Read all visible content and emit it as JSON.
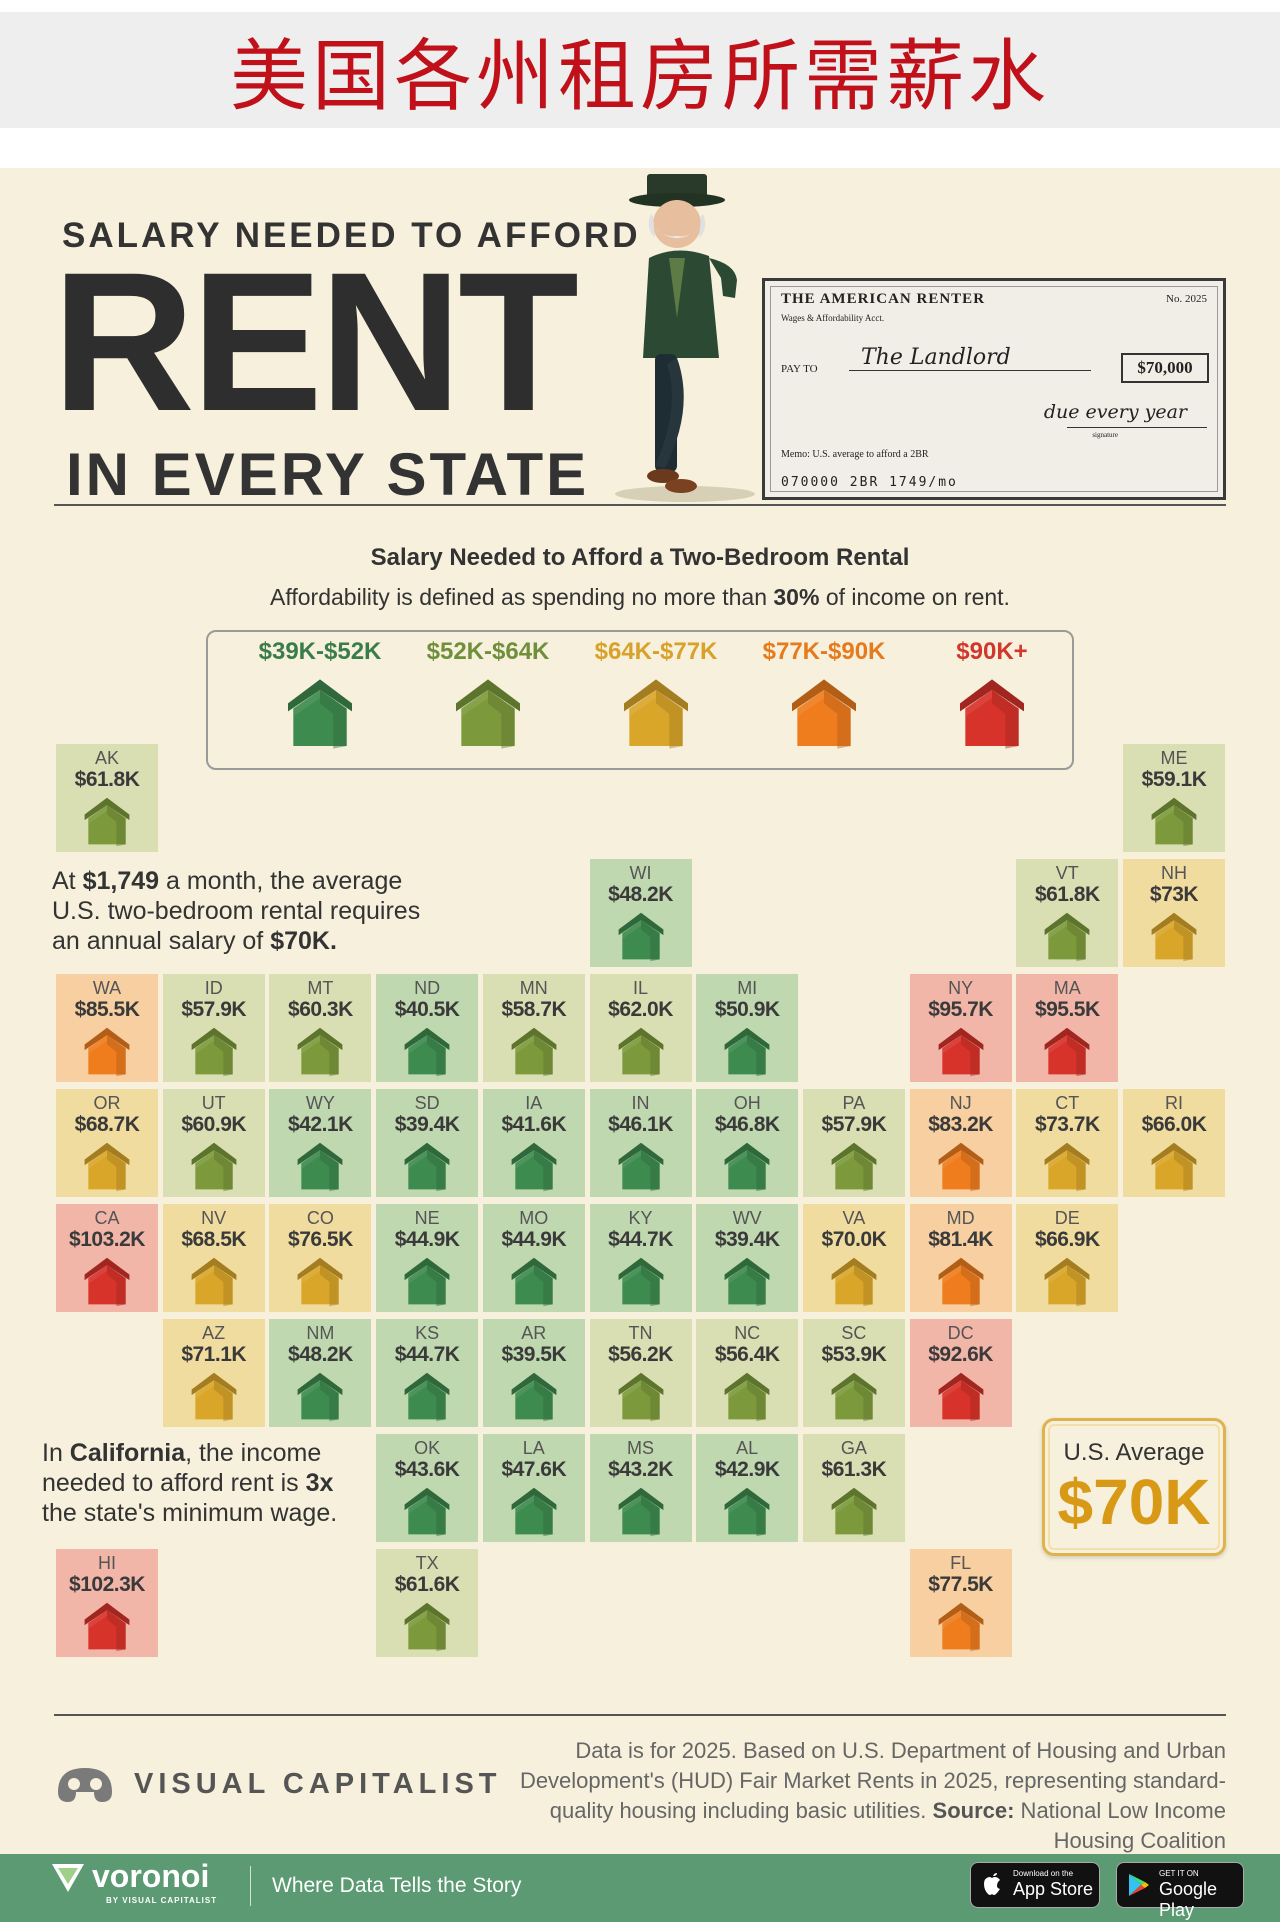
{
  "banner": {
    "title": "美国各州租房所需薪水"
  },
  "header": {
    "top": "SALARY NEEDED TO AFFORD",
    "main": "RENT",
    "bottom": "IN EVERY STATE"
  },
  "check": {
    "title": "THE AMERICAN RENTER",
    "subtitle": "Wages & Affordability Acct.",
    "number": "No. 2025",
    "pay_to_label": "PAY TO",
    "payee": "The Landlord",
    "amount": "$70,000",
    "due": "due every year",
    "signature_label": "signature",
    "memo": "Memo: U.S. average to afford a 2BR",
    "micr": "070000  2BR  1749/mo"
  },
  "chart_data": {
    "type": "tile-map",
    "title": "Salary Needed to Afford a Two-Bedroom Rental",
    "subtitle_pre": "Affordability is defined as spending no more than ",
    "subtitle_bold": "30%",
    "subtitle_post": " of income on rent.",
    "legend": [
      {
        "label": "$39K-$52K",
        "color": "#3e8b4f",
        "text_color": "#3a7d48"
      },
      {
        "label": "$52K-$64K",
        "color": "#7c9a3c",
        "text_color": "#6f8f3a"
      },
      {
        "label": "$64K-$77K",
        "color": "#d9a62a",
        "text_color": "#d8a22a"
      },
      {
        "label": "$77K-$90K",
        "color": "#ef7d1e",
        "text_color": "#e67a1c"
      },
      {
        "label": "$90K+",
        "color": "#d8332b",
        "text_color": "#d0372d"
      }
    ],
    "states": [
      {
        "abbr": "AK",
        "label": "$61.8K",
        "value": 61.8
      },
      {
        "abbr": "ME",
        "label": "$59.1K",
        "value": 59.1
      },
      {
        "abbr": "WI",
        "label": "$48.2K",
        "value": 48.2
      },
      {
        "abbr": "VT",
        "label": "$61.8K",
        "value": 61.8
      },
      {
        "abbr": "NH",
        "label": "$73K",
        "value": 73.0
      },
      {
        "abbr": "WA",
        "label": "$85.5K",
        "value": 85.5
      },
      {
        "abbr": "ID",
        "label": "$57.9K",
        "value": 57.9
      },
      {
        "abbr": "MT",
        "label": "$60.3K",
        "value": 60.3
      },
      {
        "abbr": "ND",
        "label": "$40.5K",
        "value": 40.5
      },
      {
        "abbr": "MN",
        "label": "$58.7K",
        "value": 58.7
      },
      {
        "abbr": "IL",
        "label": "$62.0K",
        "value": 62.0
      },
      {
        "abbr": "MI",
        "label": "$50.9K",
        "value": 50.9
      },
      {
        "abbr": "NY",
        "label": "$95.7K",
        "value": 95.7
      },
      {
        "abbr": "MA",
        "label": "$95.5K",
        "value": 95.5
      },
      {
        "abbr": "OR",
        "label": "$68.7K",
        "value": 68.7
      },
      {
        "abbr": "UT",
        "label": "$60.9K",
        "value": 60.9
      },
      {
        "abbr": "WY",
        "label": "$42.1K",
        "value": 42.1
      },
      {
        "abbr": "SD",
        "label": "$39.4K",
        "value": 39.4
      },
      {
        "abbr": "IA",
        "label": "$41.6K",
        "value": 41.6
      },
      {
        "abbr": "IN",
        "label": "$46.1K",
        "value": 46.1
      },
      {
        "abbr": "OH",
        "label": "$46.8K",
        "value": 46.8
      },
      {
        "abbr": "PA",
        "label": "$57.9K",
        "value": 57.9
      },
      {
        "abbr": "NJ",
        "label": "$83.2K",
        "value": 83.2
      },
      {
        "abbr": "CT",
        "label": "$73.7K",
        "value": 73.7
      },
      {
        "abbr": "RI",
        "label": "$66.0K",
        "value": 66.0
      },
      {
        "abbr": "CA",
        "label": "$103.2K",
        "value": 103.2
      },
      {
        "abbr": "NV",
        "label": "$68.5K",
        "value": 68.5
      },
      {
        "abbr": "CO",
        "label": "$76.5K",
        "value": 76.5
      },
      {
        "abbr": "NE",
        "label": "$44.9K",
        "value": 44.9
      },
      {
        "abbr": "MO",
        "label": "$44.9K",
        "value": 44.9
      },
      {
        "abbr": "KY",
        "label": "$44.7K",
        "value": 44.7
      },
      {
        "abbr": "WV",
        "label": "$39.4K",
        "value": 39.4
      },
      {
        "abbr": "VA",
        "label": "$70.0K",
        "value": 70.0
      },
      {
        "abbr": "MD",
        "label": "$81.4K",
        "value": 81.4
      },
      {
        "abbr": "DE",
        "label": "$66.9K",
        "value": 66.9
      },
      {
        "abbr": "AZ",
        "label": "$71.1K",
        "value": 71.1
      },
      {
        "abbr": "NM",
        "label": "$48.2K",
        "value": 48.2
      },
      {
        "abbr": "KS",
        "label": "$44.7K",
        "value": 44.7
      },
      {
        "abbr": "AR",
        "label": "$39.5K",
        "value": 39.5
      },
      {
        "abbr": "TN",
        "label": "$56.2K",
        "value": 56.2
      },
      {
        "abbr": "NC",
        "label": "$56.4K",
        "value": 56.4
      },
      {
        "abbr": "SC",
        "label": "$53.9K",
        "value": 53.9
      },
      {
        "abbr": "DC",
        "label": "$92.6K",
        "value": 92.6
      },
      {
        "abbr": "OK",
        "label": "$43.6K",
        "value": 43.6
      },
      {
        "abbr": "LA",
        "label": "$47.6K",
        "value": 47.6
      },
      {
        "abbr": "MS",
        "label": "$43.2K",
        "value": 43.2
      },
      {
        "abbr": "AL",
        "label": "$42.9K",
        "value": 42.9
      },
      {
        "abbr": "GA",
        "label": "$61.3K",
        "value": 61.3
      },
      {
        "abbr": "HI",
        "label": "$102.3K",
        "value": 102.3
      },
      {
        "abbr": "TX",
        "label": "$61.6K",
        "value": 61.6
      },
      {
        "abbr": "FL",
        "label": "$77.5K",
        "value": 77.5
      }
    ]
  },
  "notes": {
    "avg": {
      "pre": "At ",
      "b1": "$1,749",
      "mid": " a month, the average U.S. two-bedroom rental requires an annual salary of ",
      "b2": "$70K."
    },
    "ca": {
      "pre": "In ",
      "b1": "California",
      "mid": ", the income needed to afford rent is ",
      "b2": "3x",
      "post": " the state's minimum wage."
    }
  },
  "average_box": {
    "label": "U.S. Average",
    "value": "$70K"
  },
  "footer": {
    "brand": "VISUAL CAPITALIST",
    "source_text": "Data is for 2025. Based on U.S. Department of Housing and Urban Development's (HUD) Fair Market Rents in 2025, representing standard-quality housing including basic utilities. ",
    "source_label": "Source:",
    "source_name": " National Low Income Housing Coalition"
  },
  "bottom_bar": {
    "brand": "voronoi",
    "by": "BY VISUAL CAPITALIST",
    "tagline": "Where Data Tells the Story",
    "app_store_small": "Download on the",
    "app_store_big": "App Store",
    "play_small": "GET IT ON",
    "play_big": "Google Play"
  }
}
